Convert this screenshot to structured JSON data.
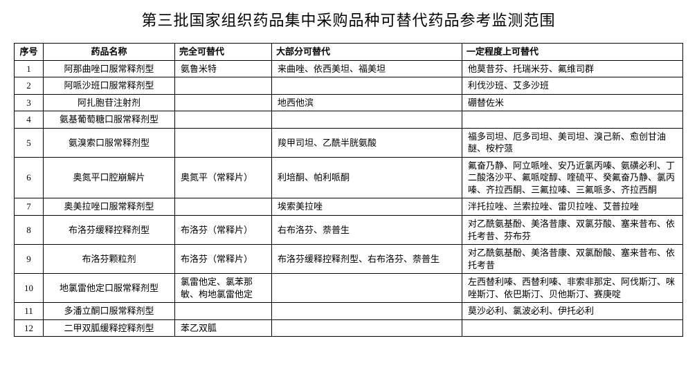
{
  "title": "第三批国家组织药品集中采购品种可替代药品参考监测范围",
  "columns": {
    "seq": "序号",
    "name": "药品名称",
    "full": "完全可替代",
    "most": "大部分可替代",
    "some": "一定程度上可替代"
  },
  "rows": [
    {
      "seq": "1",
      "name": "阿那曲唑口服常释剂型",
      "full": "氨鲁米特",
      "most": "来曲唑、依西美坦、福美坦",
      "some": "他莫昔芬、托瑞米芬、氟维司群"
    },
    {
      "seq": "2",
      "name": "阿哌沙班口服常释剂型",
      "full": "",
      "most": "",
      "some": "利伐沙班、艾多沙班"
    },
    {
      "seq": "3",
      "name": "阿扎胞苷注射剂",
      "full": "",
      "most": "地西他滨",
      "some": "硼替佐米"
    },
    {
      "seq": "4",
      "name": "氨基葡萄糖口服常释剂型",
      "full": "",
      "most": "",
      "some": ""
    },
    {
      "seq": "5",
      "name": "氨溴索口服常释剂型",
      "full": "",
      "most": "羧甲司坦、乙酰半胱氨酸",
      "some": "福多司坦、厄多司坦、美司坦、溴己新、愈创甘油醚、桉柠蒎"
    },
    {
      "seq": "6",
      "name": "奥氮平口腔崩解片",
      "full": "奥氮平（常释片）",
      "most": "利培酮、帕利哌酮",
      "some": "氟奋乃静、阿立哌唑、安乃近氯丙嗪、氨磺必利、丁二酸洛沙平、氟哌啶醇、喹硫平、癸氟奋乃静、氯丙嗪、齐拉西酮、三氟拉嗪、三氟哌多、齐拉西酮"
    },
    {
      "seq": "7",
      "name": "奥美拉唑口服常释剂型",
      "full": "",
      "most": "埃索美拉唑",
      "some": "泮托拉唑、兰索拉唑、雷贝拉唑、艾普拉唑"
    },
    {
      "seq": "8",
      "name": "布洛芬缓释控释剂型",
      "full": "布洛芬（常释片）",
      "most": "右布洛芬、萘普生",
      "some": "对乙酰氨基酚、美洛昔康、双氯芬酸、塞来昔布、依托考昔、芬布芬"
    },
    {
      "seq": "9",
      "name": "布洛芬颗粒剂",
      "full": "布洛芬（常释片）",
      "most": "布洛芬缓释控释剂型、右布洛芬、萘普生",
      "some": "对乙酰氨基酚、美洛昔康、双氯酚酸、塞来昔布、依托考昔"
    },
    {
      "seq": "10",
      "name": "地氯雷他定口服常释剂型",
      "full": "氯雷他定、氯苯那敏、枸地氯雷他定",
      "most": "",
      "some": "左西替利嗪、西替利嗪、非索非那定、阿伐斯汀、咪唑斯汀、依巴斯汀、贝他斯汀、赛庚啶"
    },
    {
      "seq": "11",
      "name": "多潘立酮口服常释剂型",
      "full": "",
      "most": "",
      "some": "莫沙必利、氯波必利、伊托必利"
    },
    {
      "seq": "12",
      "name": "二甲双胍缓释控释剂型",
      "full": "苯乙双胍",
      "most": "",
      "some": ""
    }
  ],
  "style": {
    "background_color": "#ffffff",
    "border_color": "#000000",
    "text_color": "#000000",
    "title_fontsize": 22,
    "cell_fontsize": 13,
    "font_family": "SimSun",
    "col_widths": {
      "seq": 42,
      "name": 190,
      "full": 140,
      "most": 275
    }
  }
}
